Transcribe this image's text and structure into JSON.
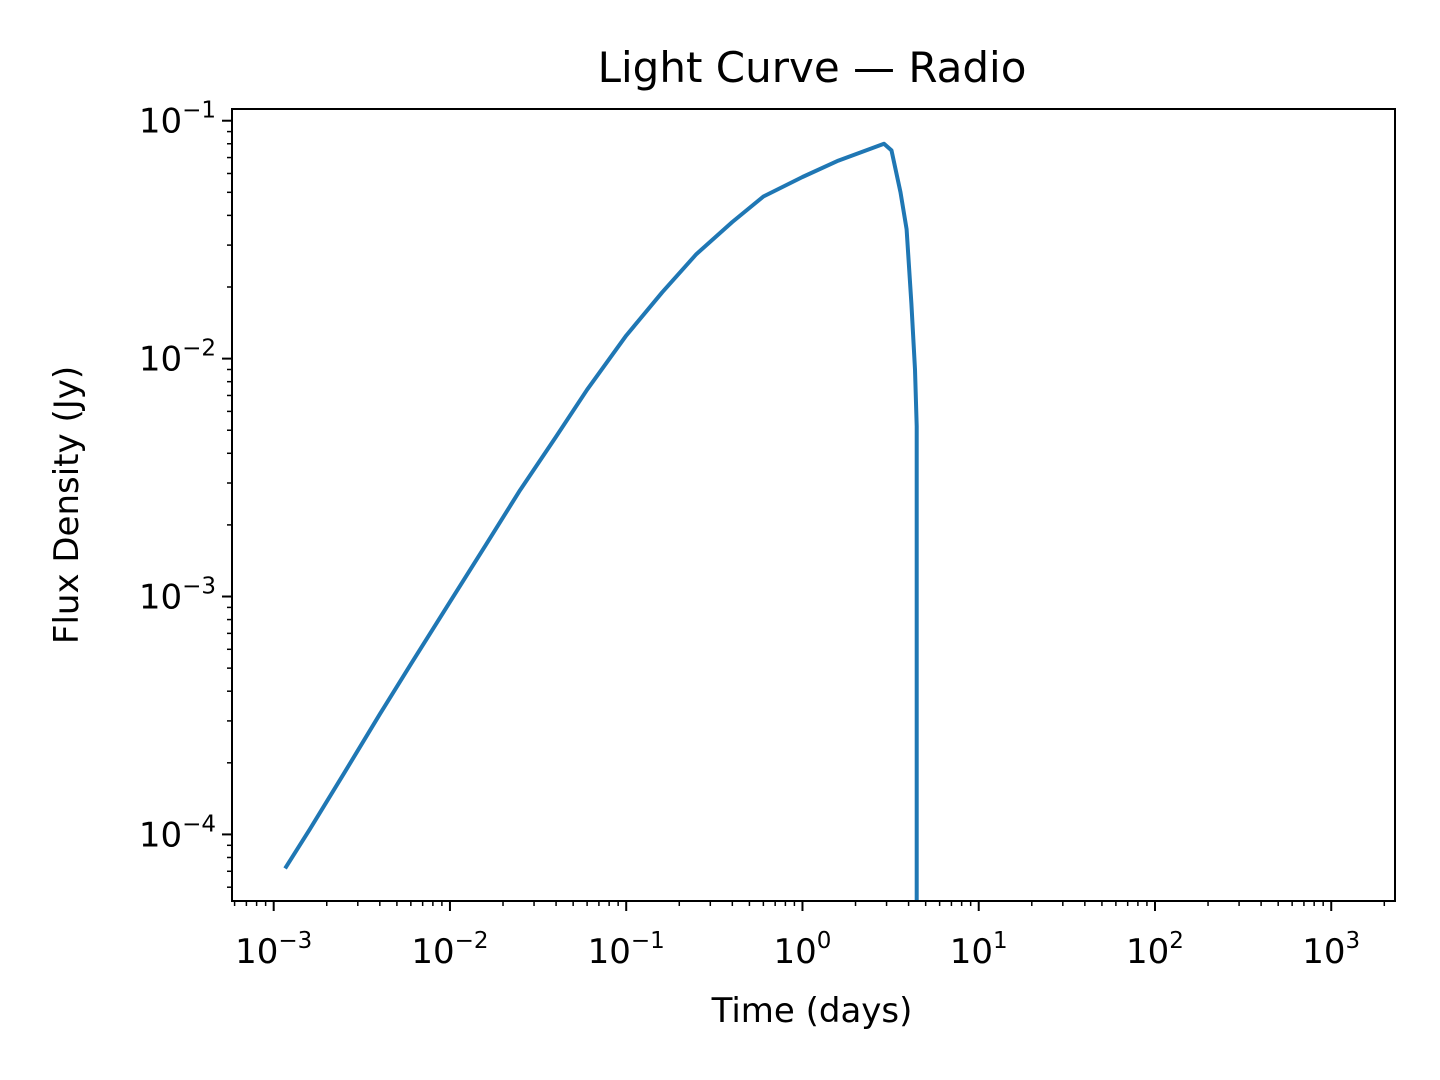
{
  "chart_data": {
    "type": "line",
    "title": "Light Curve — Radio",
    "xlabel": "Time (days)",
    "ylabel": "Flux Density (Jy)",
    "xscale": "log",
    "yscale": "log",
    "xlim": [
      0.00058,
      2300
    ],
    "ylim": [
      5.25e-05,
      0.112
    ],
    "grid": false,
    "color": "#1f77b4",
    "x_ticks": [
      {
        "value": 0.001,
        "base": "10",
        "exp": "−3"
      },
      {
        "value": 0.01,
        "base": "10",
        "exp": "−2"
      },
      {
        "value": 0.1,
        "base": "10",
        "exp": "−1"
      },
      {
        "value": 1,
        "base": "10",
        "exp": "0"
      },
      {
        "value": 10,
        "base": "10",
        "exp": "1"
      },
      {
        "value": 100,
        "base": "10",
        "exp": "2"
      },
      {
        "value": 1000,
        "base": "10",
        "exp": "3"
      }
    ],
    "y_ticks": [
      {
        "value": 0.0001,
        "base": "10",
        "exp": "−4"
      },
      {
        "value": 0.001,
        "base": "10",
        "exp": "−3"
      },
      {
        "value": 0.01,
        "base": "10",
        "exp": "−2"
      },
      {
        "value": 0.1,
        "base": "10",
        "exp": "−1"
      }
    ],
    "series": [
      {
        "x": [
          0.00116,
          0.0016,
          0.0025,
          0.004,
          0.006,
          0.01,
          0.016,
          0.025,
          0.04,
          0.06,
          0.1,
          0.16,
          0.25,
          0.4,
          0.6,
          1.0,
          1.6,
          2.4,
          2.9,
          3.2,
          3.6,
          3.9,
          4.15,
          4.35,
          4.45,
          4.45
        ],
        "y": [
          7.2e-05,
          0.000105,
          0.00018,
          0.00032,
          0.00052,
          0.00095,
          0.00165,
          0.0028,
          0.0047,
          0.0074,
          0.0125,
          0.019,
          0.0275,
          0.0375,
          0.048,
          0.058,
          0.068,
          0.076,
          0.08,
          0.075,
          0.05,
          0.035,
          0.017,
          0.009,
          0.0052,
          5.25e-05
        ]
      }
    ]
  }
}
